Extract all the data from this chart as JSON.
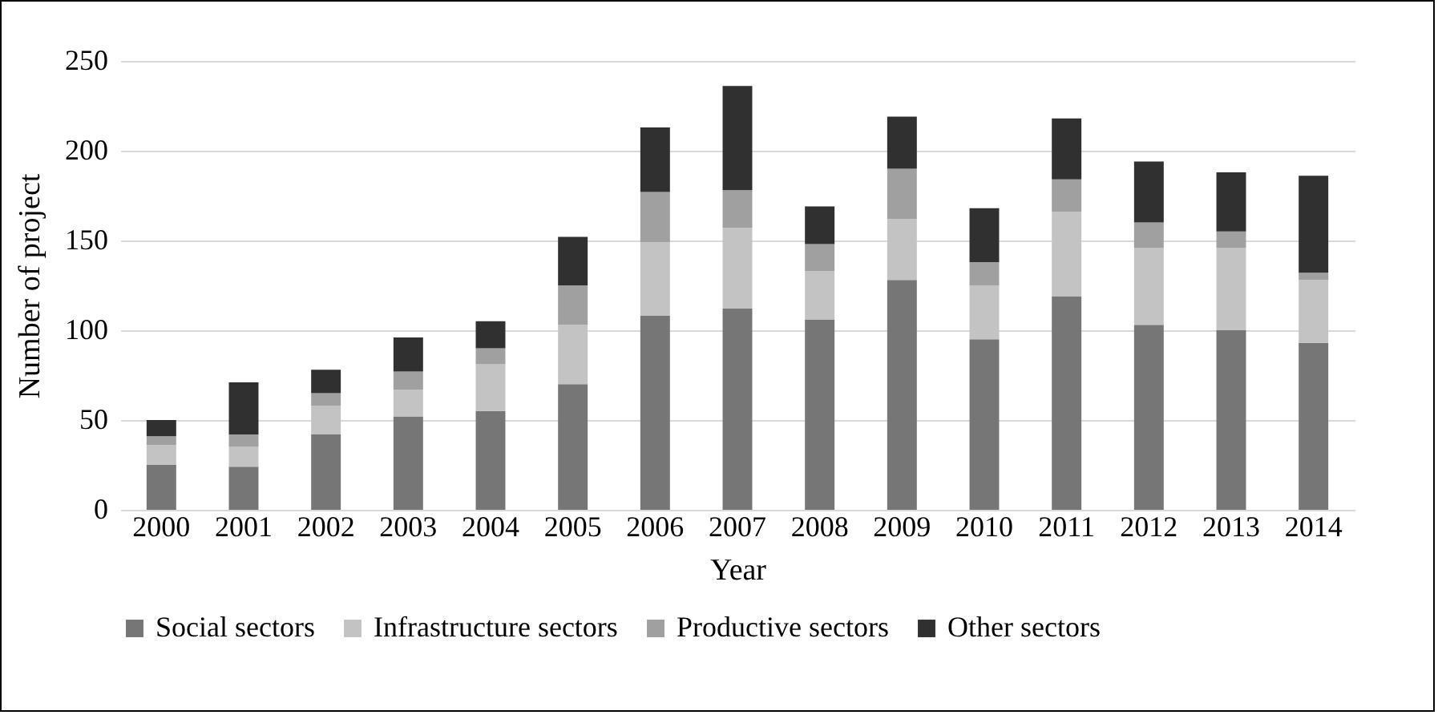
{
  "chart_data": {
    "type": "bar",
    "stacked": true,
    "xlabel": "Year",
    "ylabel": "Number of project",
    "categories": [
      "2000",
      "2001",
      "2002",
      "2003",
      "2004",
      "2005",
      "2006",
      "2007",
      "2008",
      "2009",
      "2010",
      "2011",
      "2012",
      "2013",
      "2014"
    ],
    "series": [
      {
        "name": "Social sectors",
        "color": "#767676",
        "values": [
          25,
          24,
          42,
          52,
          55,
          70,
          108,
          112,
          106,
          128,
          95,
          119,
          103,
          100,
          93
        ]
      },
      {
        "name": "Infrastructure sectors",
        "color": "#c3c3c3",
        "values": [
          11,
          11,
          16,
          15,
          26,
          33,
          41,
          45,
          27,
          34,
          30,
          47,
          43,
          46,
          35
        ]
      },
      {
        "name": "Productive sectors",
        "color": "#a0a0a0",
        "values": [
          5,
          7,
          7,
          10,
          9,
          22,
          28,
          21,
          15,
          28,
          13,
          18,
          14,
          9,
          4
        ]
      },
      {
        "name": "Other sectors",
        "color": "#303030",
        "values": [
          9,
          29,
          13,
          19,
          15,
          27,
          36,
          58,
          21,
          29,
          30,
          34,
          34,
          33,
          54
        ]
      }
    ],
    "ylim": [
      0,
      250
    ],
    "yticks": [
      0,
      50,
      100,
      150,
      200,
      250
    ],
    "grid": "y",
    "legend": "bottom"
  }
}
